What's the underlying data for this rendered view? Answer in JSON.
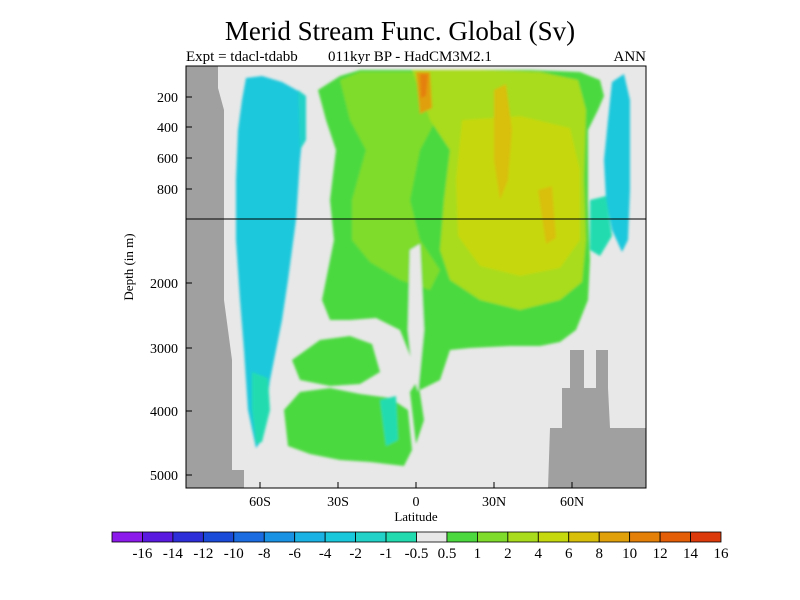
{
  "chart_data": {
    "type": "heatmap",
    "title": "Merid Stream Func. Global (Sv)",
    "left_subtitle": "Expt = tdacl-tdabb",
    "center_subtitle": "011kyr BP - HadCM3M2.1",
    "right_subtitle": "ANN",
    "xlabel": "Latitude",
    "ylabel": "Depth (in m)",
    "x_ticks": [
      "60S",
      "30S",
      "0",
      "30N",
      "60N"
    ],
    "y_ticks_upper": [
      "200",
      "400",
      "600",
      "800"
    ],
    "y_ticks_lower": [
      "2000",
      "3000",
      "4000",
      "5000"
    ],
    "xlim": [
      -90,
      90
    ],
    "depth_axis": "split: linear 0-1000 m above, compressed 1000-5200 m below",
    "colorbar": {
      "labels": [
        "-16",
        "-14",
        "-12",
        "-10",
        "-8",
        "-6",
        "-4",
        "-2",
        "-1",
        "-0.5",
        "0.5",
        "1",
        "2",
        "4",
        "6",
        "8",
        "10",
        "12",
        "14",
        "16"
      ],
      "colors": [
        "#8c1aea",
        "#5a1ae0",
        "#2e2ed8",
        "#1a4ad8",
        "#1a6ce0",
        "#1a92e4",
        "#1ab2e4",
        "#1ac8dc",
        "#22d2c8",
        "#22dcb0",
        "#e8e8e8",
        "#4bd93f",
        "#7fdc2c",
        "#a8dc1c",
        "#c6d80e",
        "#d8c00a",
        "#e0a00a",
        "#e48008",
        "#e45e08",
        "#dc3a0a"
      ]
    },
    "background_color": "#e8e8e8",
    "land_color": "#a0a0a0"
  }
}
